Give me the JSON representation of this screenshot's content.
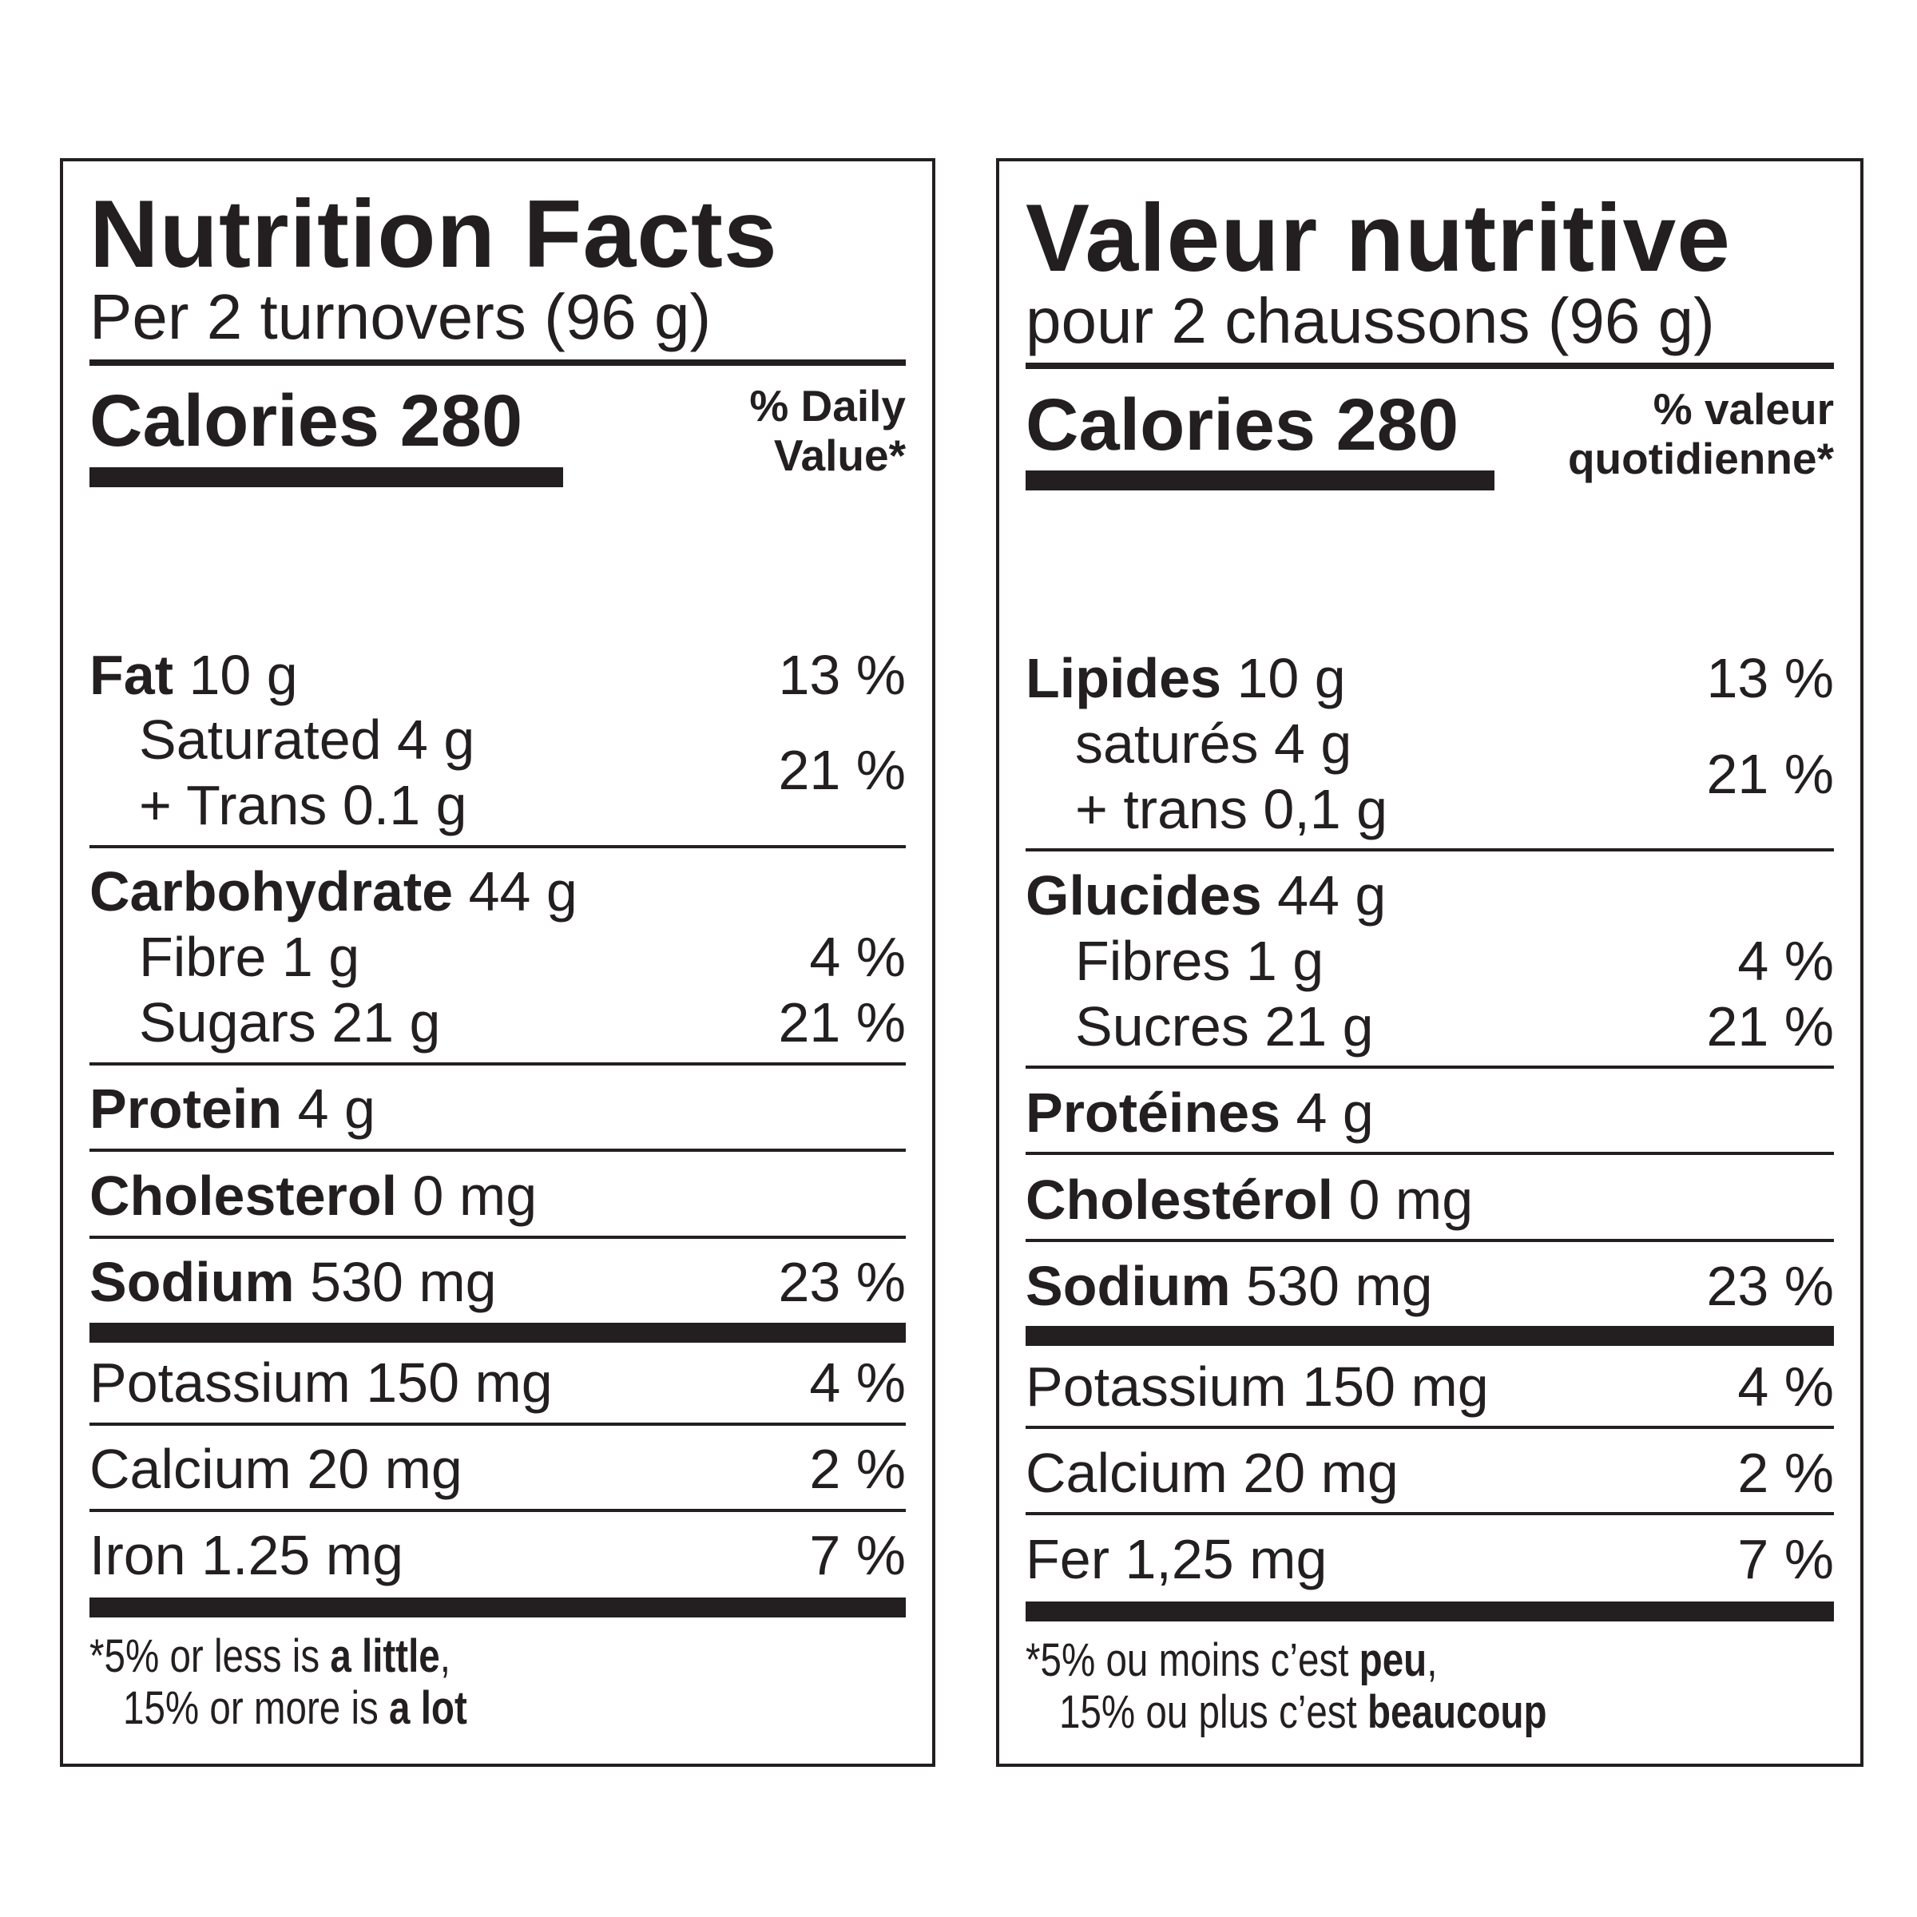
{
  "english": {
    "title": "Nutrition Facts",
    "serving": "Per 2 turnovers (96 g)",
    "calories_label": "Calories 280",
    "dv_header_line1": "% Daily",
    "dv_header_line2": "Value*",
    "fat": {
      "name": "Fat",
      "amount": "10 g",
      "dv": "13 %"
    },
    "saturated": "Saturated 4 g",
    "trans": "+ Trans 0.1 g",
    "sat_trans_dv": "21 %",
    "carbohydrate": {
      "name": "Carbohydrate",
      "amount": "44 g"
    },
    "fibre": {
      "label": "Fibre 1 g",
      "dv": "4 %"
    },
    "sugars": {
      "label": "Sugars 21 g",
      "dv": "21 %"
    },
    "protein": {
      "name": "Protein",
      "amount": "4 g"
    },
    "cholesterol": {
      "name": "Cholesterol",
      "amount": "0 mg"
    },
    "sodium": {
      "name": "Sodium",
      "amount": "530 mg",
      "dv": "23 %"
    },
    "potassium": {
      "label": "Potassium 150 mg",
      "dv": "4 %"
    },
    "calcium": {
      "label": "Calcium 20 mg",
      "dv": "2 %"
    },
    "iron": {
      "label": "Iron 1.25 mg",
      "dv": "7 %"
    },
    "footnote": {
      "line1_prefix": "*5% or less is ",
      "line1_bold": "a little",
      "line1_suffix": ",",
      "line2_prefix": "15% or more is ",
      "line2_bold": "a lot"
    }
  },
  "french": {
    "title": "Valeur nutritive",
    "serving": "pour 2 chaussons (96 g)",
    "calories_label": "Calories 280",
    "dv_header_line1": "% valeur",
    "dv_header_line2": "quotidienne*",
    "fat": {
      "name": "Lipides",
      "amount": "10 g",
      "dv": "13 %"
    },
    "saturated": "saturés 4 g",
    "trans": "+ trans 0,1 g",
    "sat_trans_dv": "21 %",
    "carbohydrate": {
      "name": "Glucides",
      "amount": "44 g"
    },
    "fibre": {
      "label": "Fibres 1 g",
      "dv": "4 %"
    },
    "sugars": {
      "label": "Sucres 21 g",
      "dv": "21 %"
    },
    "protein": {
      "name": "Protéines",
      "amount": "4 g"
    },
    "cholesterol": {
      "name": "Cholestérol",
      "amount": "0 mg"
    },
    "sodium": {
      "name": "Sodium",
      "amount": "530 mg",
      "dv": "23 %"
    },
    "potassium": {
      "label": "Potassium 150 mg",
      "dv": "4 %"
    },
    "calcium": {
      "label": "Calcium 20 mg",
      "dv": "2 %"
    },
    "iron": {
      "label": "Fer 1,25 mg",
      "dv": "7 %"
    },
    "footnote": {
      "line1_prefix": "*5% ou moins c’est ",
      "line1_bold": "peu",
      "line1_suffix": ",",
      "line2_prefix": "15% ou plus c’est ",
      "line2_bold": "beaucoup"
    }
  },
  "colors": {
    "ink": "#231f20",
    "background": "#ffffff"
  }
}
